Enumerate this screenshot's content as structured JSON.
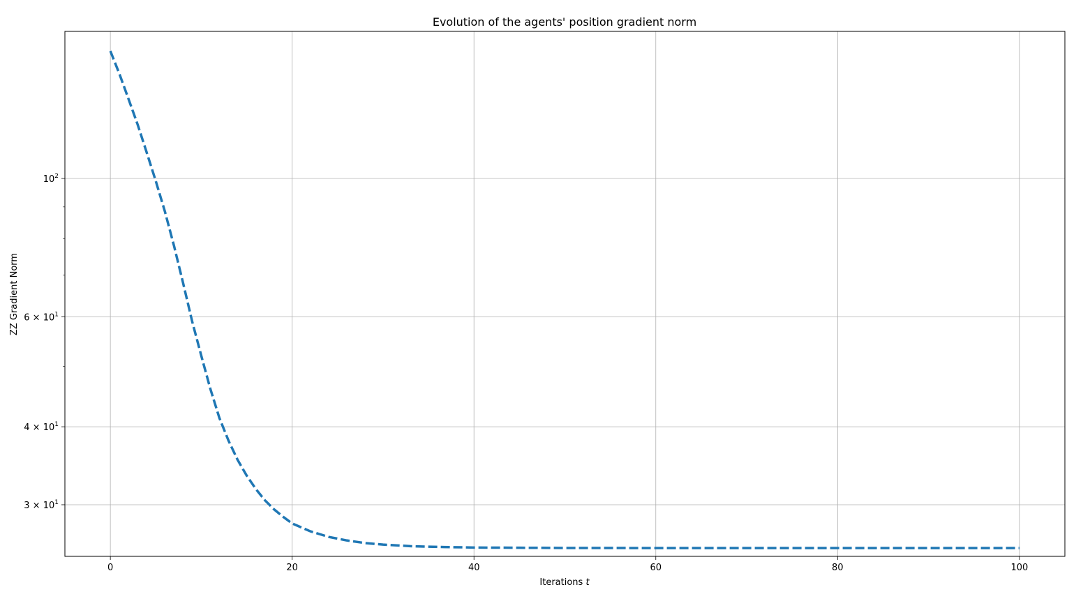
{
  "chart_data": {
    "type": "line",
    "title": "Evolution of the agents' position gradient norm",
    "xlabel": "Iterations",
    "xlabel_var": "t",
    "ylabel": "ZZ Gradient Norm",
    "yscale": "log",
    "grid": true,
    "xlim": [
      -5,
      105
    ],
    "ylim": [
      24.8,
      172
    ],
    "x_ticks": [
      0,
      20,
      40,
      60,
      80,
      100
    ],
    "y_ticks": [
      {
        "value": 100,
        "mantissa": "",
        "base": "10",
        "exp": "2"
      },
      {
        "value": 60,
        "mantissa": "6 × ",
        "base": "10",
        "exp": "1"
      },
      {
        "value": 40,
        "mantissa": "4 × ",
        "base": "10",
        "exp": "1"
      },
      {
        "value": 30,
        "mantissa": "3 × ",
        "base": "10",
        "exp": "1"
      }
    ],
    "y_minor_ticks": [
      50,
      70,
      80,
      90
    ],
    "series": [
      {
        "color": "#1f77b4",
        "linestyle": "dashed",
        "x": [
          0,
          1,
          2,
          3,
          4,
          5,
          6,
          7,
          8,
          9,
          10,
          11,
          12,
          13,
          14,
          15,
          16,
          17,
          18,
          19,
          20,
          22,
          24,
          26,
          28,
          30,
          33,
          36,
          40,
          45,
          50,
          60,
          70,
          80,
          90,
          100
        ],
        "y": [
          160,
          147,
          134,
          122,
          110,
          99,
          88.5,
          78,
          68,
          59,
          52,
          46,
          41.3,
          38,
          35.4,
          33.4,
          31.8,
          30.5,
          29.5,
          28.7,
          28.0,
          27.2,
          26.65,
          26.3,
          26.05,
          25.9,
          25.75,
          25.68,
          25.62,
          25.6,
          25.58,
          25.57,
          25.57,
          25.57,
          25.57,
          25.57
        ]
      }
    ]
  }
}
